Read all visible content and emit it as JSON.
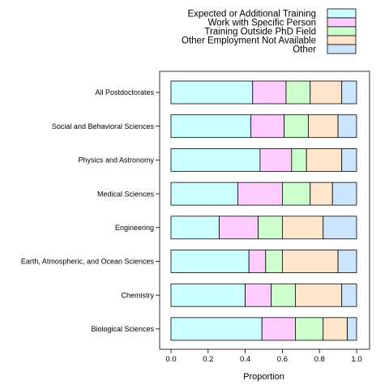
{
  "chart_data": {
    "type": "bar",
    "orientation": "horizontal",
    "stacked": true,
    "title": "",
    "xlabel": "Proportion",
    "ylabel": "",
    "xlim": [
      0,
      1
    ],
    "x_ticks": [
      "0.0",
      "0.2",
      "0.4",
      "0.6",
      "0.8",
      "1.0"
    ],
    "x_tick_values": [
      0,
      0.2,
      0.4,
      0.6,
      0.8,
      1.0
    ],
    "legend_position": "top",
    "grid": false,
    "categories": [
      "All Postdoctorates",
      "Social and Behavioral Sciences",
      "Physics and Astronomy",
      "Medical Sciences",
      "Engineering",
      "Earth, Atmospheric, and Ocean Sciences",
      "Chemistry",
      "Biological Sciences"
    ],
    "series": [
      {
        "name": "Expected or Additional Training",
        "color": "#ccffff",
        "values": [
          0.44,
          0.43,
          0.48,
          0.36,
          0.26,
          0.42,
          0.4,
          0.49
        ]
      },
      {
        "name": "Work with Specific Person",
        "color": "#ffccff",
        "values": [
          0.18,
          0.18,
          0.17,
          0.24,
          0.21,
          0.09,
          0.14,
          0.18
        ]
      },
      {
        "name": "Training Outside PhD Field",
        "color": "#ccffcc",
        "values": [
          0.13,
          0.13,
          0.08,
          0.15,
          0.13,
          0.09,
          0.13,
          0.15
        ]
      },
      {
        "name": "Other Employment Not Available",
        "color": "#ffe5cc",
        "values": [
          0.17,
          0.16,
          0.19,
          0.12,
          0.22,
          0.3,
          0.25,
          0.13
        ]
      },
      {
        "name": "Other",
        "color": "#cce5ff",
        "values": [
          0.08,
          0.1,
          0.08,
          0.13,
          0.18,
          0.1,
          0.08,
          0.05
        ]
      }
    ]
  }
}
